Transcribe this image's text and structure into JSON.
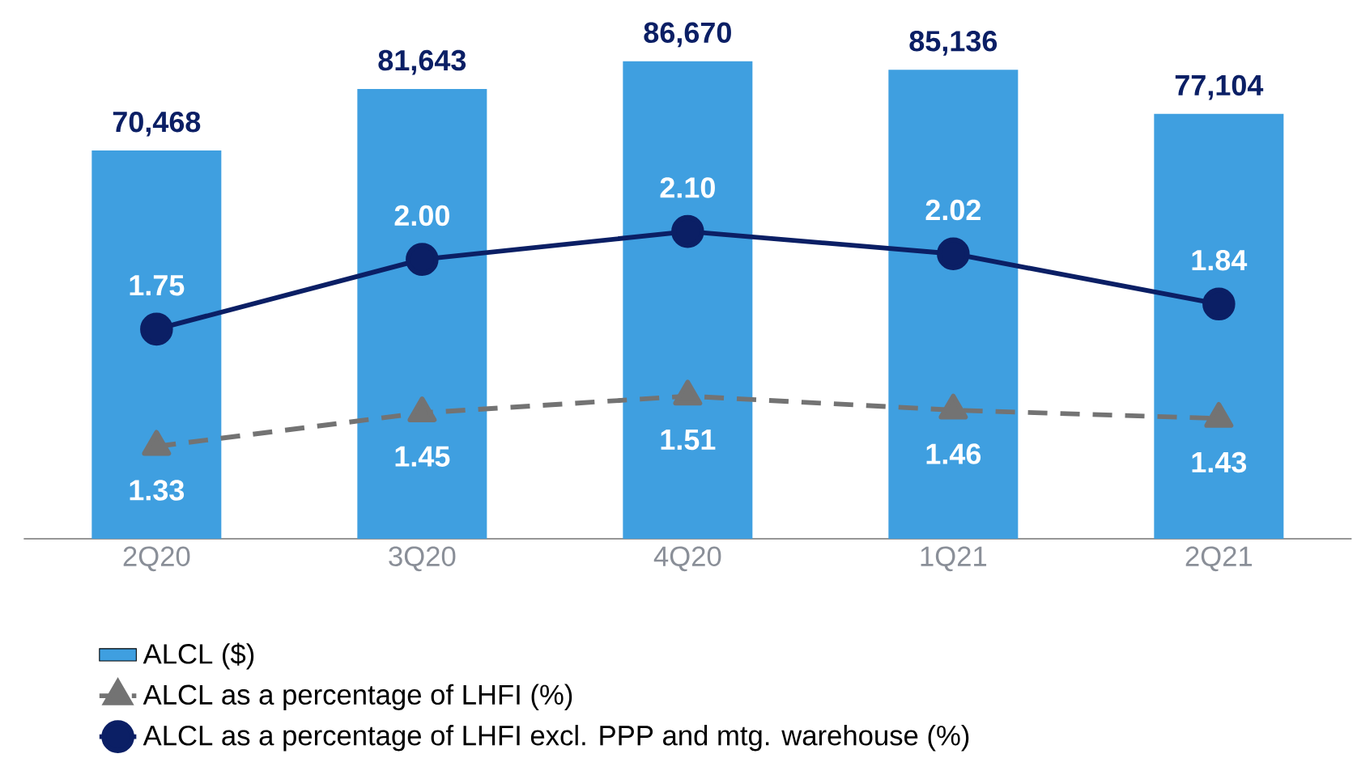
{
  "chart_data": {
    "type": "bar",
    "categories": [
      "2Q20",
      "3Q20",
      "4Q20",
      "1Q21",
      "2Q21"
    ],
    "series": [
      {
        "name": "ALCL ($)",
        "color": "#3f9fe0",
        "values": [
          70468,
          81643,
          86670,
          85136,
          77104
        ],
        "value_labels": [
          "70,468",
          "81,643",
          "86,670",
          "85,136",
          "77,104"
        ]
      },
      {
        "name": "ALCL as a percentage of LHFI (%)",
        "type": "line",
        "axis": "y2",
        "color": "#737373",
        "marker": "triangle",
        "line_style": "dashed",
        "values": [
          1.33,
          1.45,
          1.51,
          1.46,
          1.43
        ],
        "value_labels": [
          "1.33",
          "1.45",
          "1.51",
          "1.46",
          "1.43"
        ]
      },
      {
        "name": "ALCL as a percentage of LHFI excl. PPP and mtg. warehouse (%)",
        "type": "line",
        "axis": "y2",
        "color": "#0b1f65",
        "marker": "circle",
        "line_style": "solid",
        "values": [
          1.75,
          2.0,
          2.1,
          2.02,
          1.84
        ],
        "value_labels": [
          "1.75",
          "2.00",
          "2.10",
          "2.02",
          "1.84"
        ]
      }
    ],
    "tick_labels": "x",
    "grid": false,
    "legend": "bottom"
  }
}
